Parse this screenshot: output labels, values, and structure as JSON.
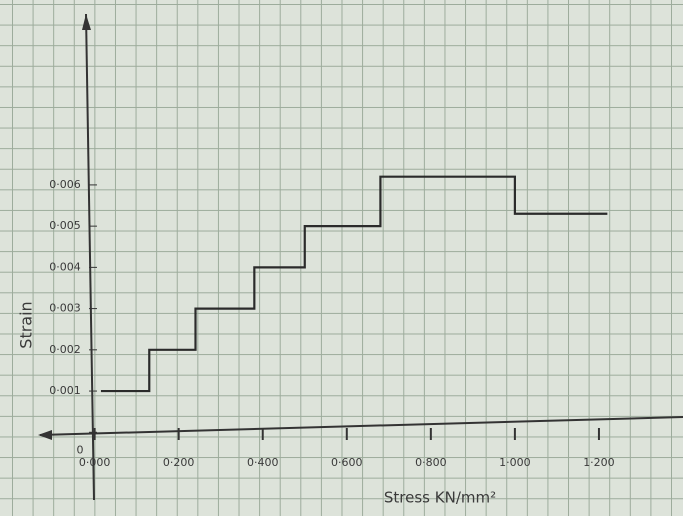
{
  "chart_data": {
    "type": "line",
    "x_label": "Stress KN/mm²",
    "y_label": "Strain",
    "x": [
      0.015,
      0.13,
      0.13,
      0.24,
      0.24,
      0.38,
      0.38,
      0.5,
      0.5,
      0.68,
      0.68,
      1.0,
      1.0,
      1.22
    ],
    "series": [
      {
        "name": "Strain",
        "color": "#2b2b2b",
        "values": [
          0.001,
          0.001,
          0.002,
          0.002,
          0.003,
          0.003,
          0.004,
          0.004,
          0.005,
          0.005,
          0.0062,
          0.0062,
          0.0053,
          0.0053
        ]
      }
    ],
    "xlim": [
      -0.13,
      1.4
    ],
    "ylim": [
      -0.0014,
      0.01
    ],
    "xticks": [
      {
        "value": 0,
        "label": "0·000"
      },
      {
        "value": 0.2,
        "label": "0·200"
      },
      {
        "value": 0.4,
        "label": "0·400"
      },
      {
        "value": 0.6,
        "label": "0·600"
      },
      {
        "value": 0.8,
        "label": "0·800"
      },
      {
        "value": 1.0,
        "label": "1·000"
      },
      {
        "value": 1.2,
        "label": "1·200"
      }
    ],
    "yticks": [
      0,
      {
        "value": 0.001,
        "label": "0·001"
      },
      {
        "value": 0.002,
        "label": "0·002"
      },
      {
        "value": 0.003,
        "label": "0·003"
      },
      {
        "value": 0.004,
        "label": "0·004"
      },
      {
        "value": 0.005,
        "label": "0·005"
      },
      {
        "value": 0.006,
        "label": "0·006"
      }
    ]
  }
}
